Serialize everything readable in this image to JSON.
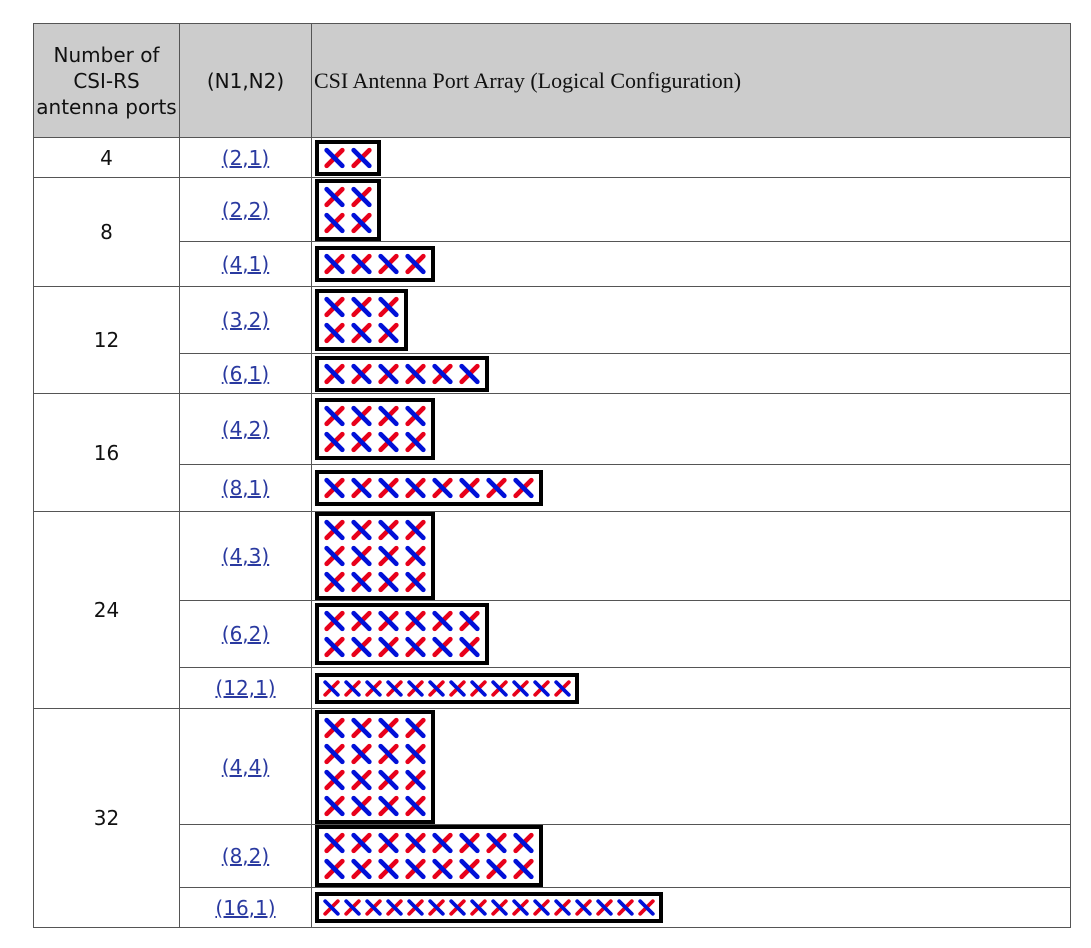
{
  "header": {
    "ports": "Number of CSI-RS antenna ports",
    "n1n2": "(N1,N2)",
    "array": "CSI Antenna Port Array (Logical Configuration)"
  },
  "colors": {
    "slash": "#e8001a",
    "backslash": "#0010d8",
    "frame": "#000000"
  },
  "icon": "cross-polarized-antenna-element",
  "groups": [
    {
      "ports": "4",
      "configs": [
        {
          "label": "(2,1)",
          "n1": 2,
          "n2": 1
        }
      ]
    },
    {
      "ports": "8",
      "configs": [
        {
          "label": "(2,2)",
          "n1": 2,
          "n2": 2
        },
        {
          "label": "(4,1)",
          "n1": 4,
          "n2": 1
        }
      ]
    },
    {
      "ports": "12",
      "configs": [
        {
          "label": "(3,2)",
          "n1": 3,
          "n2": 2
        },
        {
          "label": "(6,1)",
          "n1": 6,
          "n2": 1
        }
      ]
    },
    {
      "ports": "16",
      "configs": [
        {
          "label": "(4,2)",
          "n1": 4,
          "n2": 2
        },
        {
          "label": "(8,1)",
          "n1": 8,
          "n2": 1
        }
      ]
    },
    {
      "ports": "24",
      "configs": [
        {
          "label": "(4,3)",
          "n1": 4,
          "n2": 3
        },
        {
          "label": "(6,2)",
          "n1": 6,
          "n2": 2
        },
        {
          "label": "(12,1)",
          "n1": 12,
          "n2": 1
        }
      ]
    },
    {
      "ports": "32",
      "configs": [
        {
          "label": "(4,4)",
          "n1": 4,
          "n2": 4
        },
        {
          "label": "(8,2)",
          "n1": 8,
          "n2": 2
        },
        {
          "label": "(16,1)",
          "n1": 16,
          "n2": 1
        }
      ]
    }
  ]
}
